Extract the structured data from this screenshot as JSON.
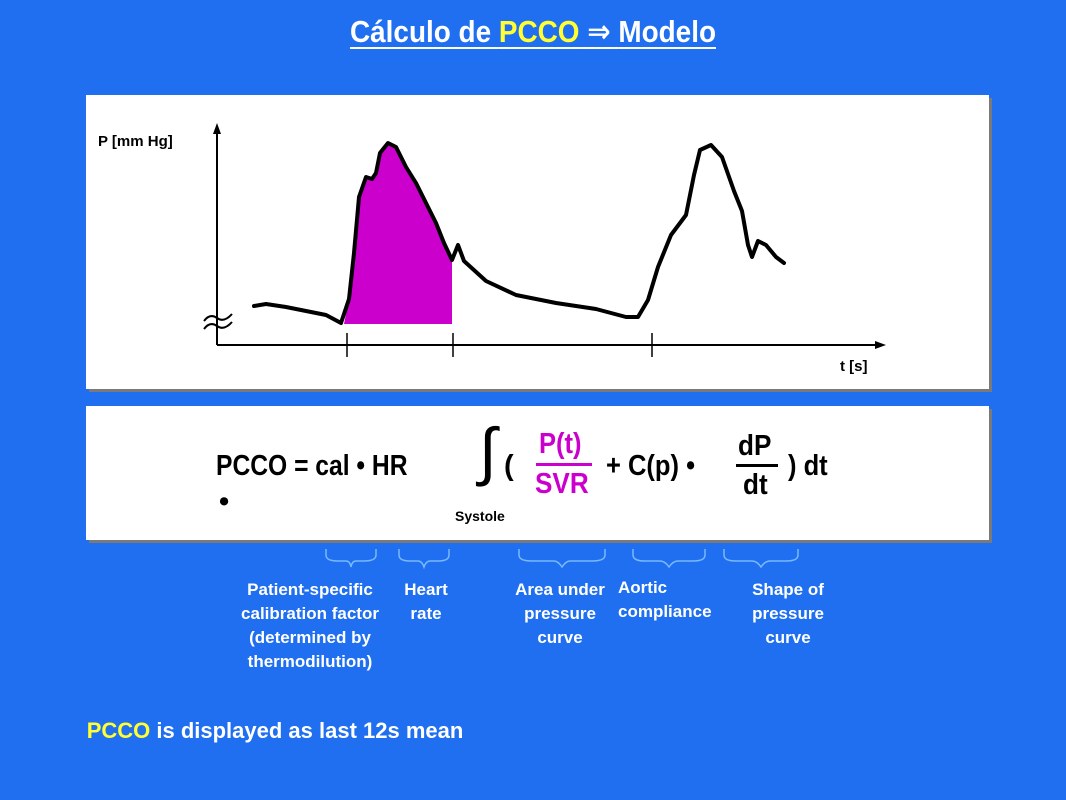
{
  "title": {
    "prefix": "Cálculo de ",
    "highlight": "PCCO",
    "arrow": " ⇒ ",
    "suffix": "Modelo"
  },
  "graph": {
    "y_axis_label": "P [mm Hg]",
    "x_axis_label": "t [s]"
  },
  "formula": {
    "lhs": "PCCO = cal • HR",
    "bullet2": "•",
    "integral": "∫",
    "open_paren": "(",
    "frac1_num": "P(t)",
    "frac1_den": "SVR",
    "middle": "+ C(p) •",
    "frac2_num": "dP",
    "frac2_den": "dt",
    "close": ") dt",
    "integral_limit": "Systole"
  },
  "annotations": [
    {
      "text": "Patient-specific\ncalibration factor\n(determined by\nthermodilution)"
    },
    {
      "text": "Heart\nrate"
    },
    {
      "text": "Area under\npressure\ncurve"
    },
    {
      "text": "Aortic\ncompliance"
    },
    {
      "text": "Shape of\npressure\ncurve"
    }
  ],
  "note": {
    "highlight": "PCCO",
    "rest": " is displayed as last 12s mean"
  },
  "colors": {
    "background": "#1f6ff0",
    "highlight": "#ffff33",
    "area_fill": "#cc00cc"
  }
}
